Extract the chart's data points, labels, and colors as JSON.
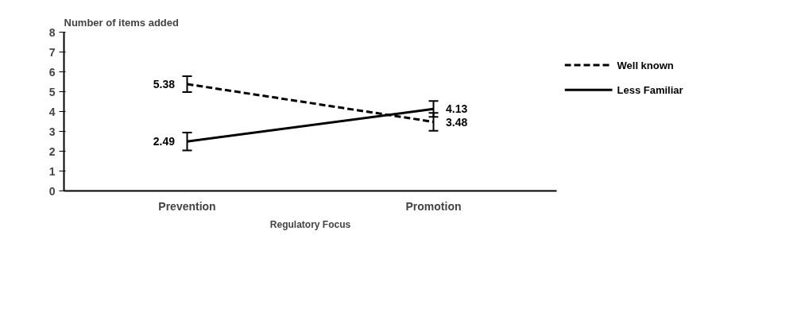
{
  "chart_data": {
    "type": "line",
    "ylabel": "Number of items added",
    "xlabel": "Regulatory Focus",
    "categories": [
      "Prevention",
      "Promotion"
    ],
    "series": [
      {
        "name": "Well known",
        "color": "#000000",
        "values": [
          5.38,
          3.48
        ],
        "errors": [
          0.4,
          0.45
        ],
        "line_style": "dashed"
      },
      {
        "name": "Less Familiar",
        "color": "#000000",
        "values": [
          2.49,
          4.13
        ],
        "errors": [
          0.45,
          0.4
        ],
        "line_style": "solid"
      }
    ],
    "ylim": [
      0,
      8
    ],
    "yticks": [
      0,
      1,
      2,
      3,
      4,
      5,
      6,
      7,
      8
    ],
    "grid": false,
    "legend": "right",
    "data_labels": true,
    "marker": "none"
  }
}
